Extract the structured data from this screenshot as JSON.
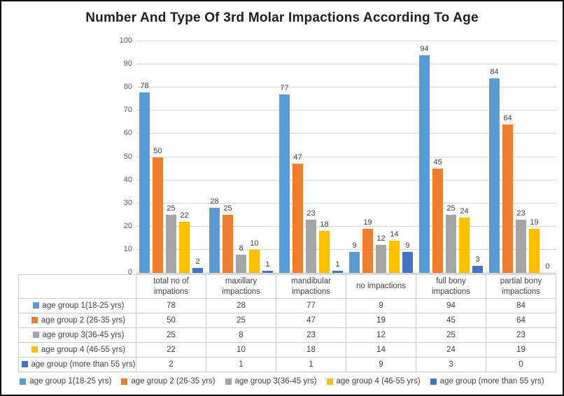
{
  "title": "Number And Type Of 3rd Molar Impactions According To Age",
  "chart_data": {
    "type": "bar",
    "title": "Number And Type Of 3rd Molar Impactions According To Age",
    "categories": [
      "total no of impations",
      "maxillary impactions",
      "mandibular impactions",
      "no impactions",
      "full bony impactions",
      "partial bony impactions"
    ],
    "series": [
      {
        "name": "age group 1(18-25 yrs)",
        "color": "#5B9BD5",
        "values": [
          78,
          28,
          77,
          9,
          94,
          84
        ]
      },
      {
        "name": "age group 2 (26-35 yrs)",
        "color": "#ED7D31",
        "values": [
          50,
          25,
          47,
          19,
          45,
          64
        ]
      },
      {
        "name": "age group 3(36-45 yrs)",
        "color": "#A5A5A5",
        "values": [
          25,
          8,
          23,
          12,
          25,
          23
        ]
      },
      {
        "name": "age group 4 (46-55 yrs)",
        "color": "#FFC000",
        "values": [
          22,
          10,
          18,
          14,
          24,
          19
        ]
      },
      {
        "name": "age group (more than 55 yrs)",
        "color": "#4472C4",
        "values": [
          2,
          1,
          1,
          9,
          3,
          0
        ]
      }
    ],
    "ylim": [
      0,
      100
    ],
    "yticks": [
      0,
      10,
      20,
      30,
      40,
      50,
      60,
      70,
      80,
      90,
      100
    ],
    "grid": true,
    "data_labels": true,
    "legend_position": "bottom",
    "data_table_shown": true,
    "gridline_color": "#D9D9D9",
    "axis_text_color": "#595959",
    "label_text_color": "#3F3F3F"
  }
}
